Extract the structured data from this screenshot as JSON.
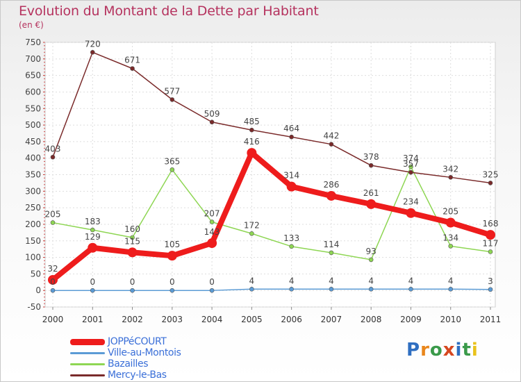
{
  "header": {
    "title": "Evolution du Montant de la Dette par Habitant",
    "unit": "(en €)"
  },
  "brand": {
    "letters": [
      "P",
      "r",
      "o",
      "x",
      "i",
      "t",
      "i"
    ],
    "colors": [
      "#2f6fc1",
      "#e9861b",
      "#3a9a4a",
      "#d6471f",
      "#2f6fc1",
      "#3a9a4a",
      "#e9c21b"
    ]
  },
  "chart_data": {
    "type": "line",
    "title": "Evolution du Montant de la Dette par Habitant",
    "ylabel": "(en €)",
    "xlabel": "",
    "x": [
      "2000",
      "2001",
      "2002",
      "2003",
      "2004",
      "2005",
      "2006",
      "2007",
      "2008",
      "2009",
      "2010",
      "2011"
    ],
    "ylim": [
      -50,
      750
    ],
    "yticks": [
      "-50",
      "0",
      "50",
      "100",
      "150",
      "200",
      "250",
      "300",
      "350",
      "400",
      "450",
      "500",
      "550",
      "600",
      "650",
      "700",
      "750"
    ],
    "grid": true,
    "legend_position": "bottom-left",
    "series": [
      {
        "name": "JOPPéCOURT",
        "color": "#ee1c1c",
        "values": [
          32,
          129,
          115,
          105,
          143,
          416,
          314,
          286,
          261,
          234,
          205,
          168
        ],
        "labels": [
          "32",
          "129",
          "115",
          "105",
          "143",
          "416",
          "314",
          "286",
          "261",
          "234",
          "205",
          "168"
        ]
      },
      {
        "name": "Ville-au-Montois",
        "color": "#5b9bd5",
        "values": [
          0,
          0,
          0,
          0,
          0,
          4,
          4,
          4,
          4,
          4,
          4,
          3
        ],
        "labels": [
          "0",
          "0",
          "0",
          "0",
          "0",
          "4",
          "4",
          "4",
          "4",
          "4",
          "4",
          "3"
        ]
      },
      {
        "name": "Bazailles",
        "color": "#8ed653",
        "values": [
          205,
          183,
          160,
          365,
          207,
          172,
          133,
          114,
          93,
          374,
          134,
          117
        ],
        "labels": [
          "205",
          "183",
          "160",
          "365",
          "207",
          "172",
          "133",
          "114",
          "93",
          "374",
          "134",
          "117"
        ]
      },
      {
        "name": "Mercy-le-Bas",
        "color": "#7a2a2a",
        "values": [
          403,
          720,
          671,
          577,
          509,
          485,
          464,
          442,
          378,
          357,
          342,
          325
        ],
        "labels": [
          "403",
          "720",
          "671",
          "577",
          "509",
          "485",
          "464",
          "442",
          "378",
          "357",
          "342",
          "325"
        ]
      }
    ]
  }
}
